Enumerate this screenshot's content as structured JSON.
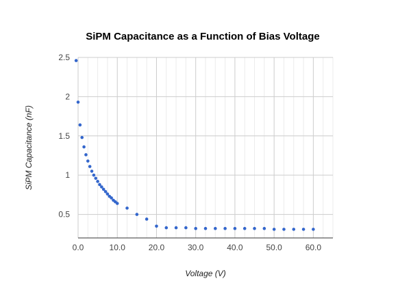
{
  "chart_data": {
    "type": "scatter",
    "title": "SiPM Capacitance as a Function of Bias Voltage",
    "xlabel": "Voltage (V)",
    "ylabel": "SiPM Capacitance (nF)",
    "xlim": [
      0,
      65
    ],
    "ylim": [
      0.2,
      2.5
    ],
    "x_ticks": [
      0,
      10,
      20,
      30,
      40,
      50,
      60
    ],
    "x_tick_labels": [
      "0.0",
      "10.0",
      "20.0",
      "30.0",
      "40.0",
      "50.0",
      "60.0"
    ],
    "y_ticks": [
      0.5,
      1,
      1.5,
      2,
      2.5
    ],
    "y_tick_labels": [
      "0.5",
      "1",
      "1.5",
      "2",
      "2.5"
    ],
    "grid": true,
    "legend": "none",
    "marker_color": "#3366cc",
    "series": [
      {
        "x": [
          -0.5,
          0,
          0.5,
          1,
          1.5,
          2,
          2.5,
          3,
          3.5,
          4,
          4.5,
          5,
          5.5,
          6,
          6.5,
          7,
          7.5,
          8,
          8.5,
          9,
          9.5,
          10,
          12.5,
          15,
          17.5,
          20,
          22.5,
          25,
          27.5,
          30,
          32.5,
          35,
          37.5,
          40,
          42.5,
          45,
          47.5,
          50,
          52.5,
          55,
          57.5,
          60
        ],
        "y": [
          2.46,
          1.93,
          1.64,
          1.48,
          1.36,
          1.26,
          1.18,
          1.11,
          1.05,
          1.0,
          0.96,
          0.92,
          0.88,
          0.85,
          0.82,
          0.79,
          0.76,
          0.73,
          0.71,
          0.68,
          0.66,
          0.64,
          0.58,
          0.5,
          0.44,
          0.35,
          0.33,
          0.33,
          0.33,
          0.32,
          0.32,
          0.32,
          0.32,
          0.32,
          0.32,
          0.32,
          0.32,
          0.31,
          0.31,
          0.31,
          0.31,
          0.31
        ]
      }
    ]
  }
}
